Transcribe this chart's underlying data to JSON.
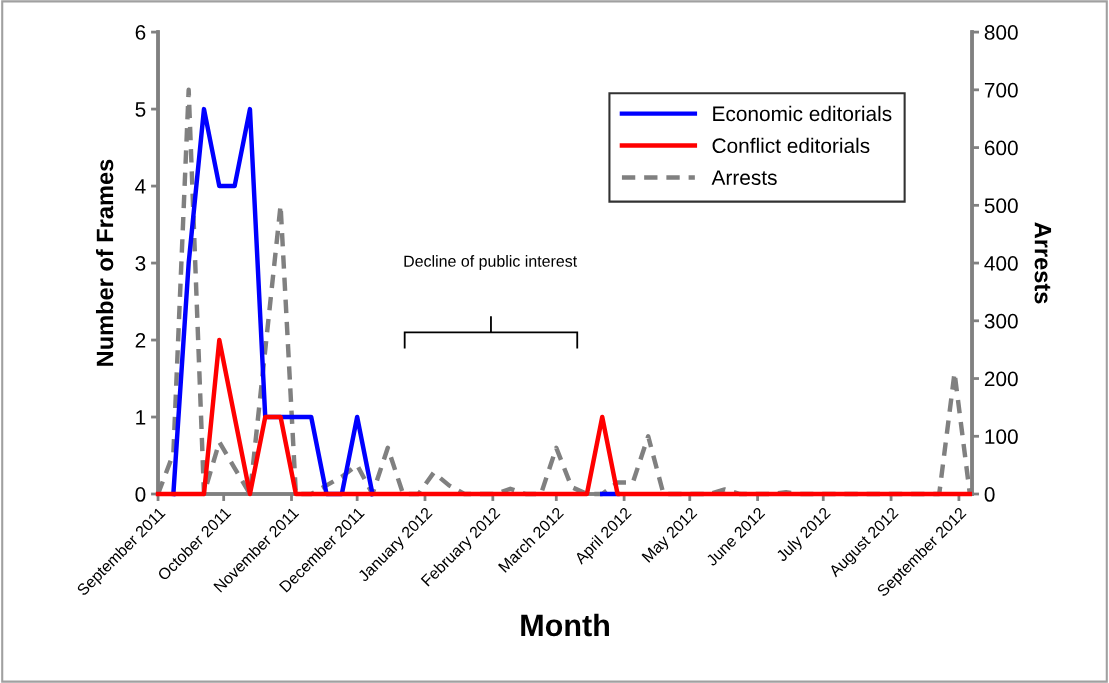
{
  "chart_data": {
    "type": "line",
    "xlabel": "Month",
    "ylabel": "Number of Frames",
    "y2label": "Arrests",
    "x": [
      "2011-09-01",
      "2011-09-08",
      "2011-09-15",
      "2011-09-22",
      "2011-09-29",
      "2011-10-06",
      "2011-10-13",
      "2011-10-20",
      "2011-10-27",
      "2011-11-03",
      "2011-11-10",
      "2011-11-17",
      "2011-11-24",
      "2011-12-01",
      "2011-12-08",
      "2011-12-15",
      "2011-12-22",
      "2011-12-29",
      "2012-01-05",
      "2012-01-12",
      "2012-01-19",
      "2012-01-26",
      "2012-02-02",
      "2012-02-09",
      "2012-02-16",
      "2012-02-23",
      "2012-03-01",
      "2012-03-08",
      "2012-03-15",
      "2012-03-22",
      "2012-03-29",
      "2012-04-05",
      "2012-04-12",
      "2012-04-19",
      "2012-04-26",
      "2012-05-03",
      "2012-05-10",
      "2012-05-17",
      "2012-05-24",
      "2012-05-31",
      "2012-06-07",
      "2012-06-14",
      "2012-06-21",
      "2012-06-28",
      "2012-07-05",
      "2012-07-12",
      "2012-07-19",
      "2012-07-26",
      "2012-08-02",
      "2012-08-09",
      "2012-08-16",
      "2012-08-23",
      "2012-08-30",
      "2012-09-06"
    ],
    "series": [
      {
        "name": "Economic editorials",
        "color": "#0000ff",
        "line_style": "solid",
        "values": [
          null,
          0,
          3,
          5,
          4,
          4,
          5,
          1,
          1,
          1,
          1,
          0,
          0,
          1,
          0,
          null,
          null,
          null,
          null,
          null,
          null,
          null,
          null,
          null,
          null,
          null,
          null,
          null,
          null,
          0,
          0,
          null,
          null,
          null,
          null,
          null,
          null,
          null,
          null,
          null,
          null,
          null,
          null,
          null,
          null,
          null,
          null,
          null,
          null,
          null,
          null,
          null,
          null,
          null
        ]
      },
      {
        "name": "Conflict editorials",
        "color": "#ff0000",
        "line_style": "solid",
        "values": [
          0,
          0,
          0,
          0,
          2,
          1,
          0,
          1,
          1,
          0,
          0,
          0,
          0,
          0,
          0,
          0,
          0,
          0,
          0,
          0,
          0,
          0,
          0,
          0,
          0,
          0,
          0,
          0,
          0,
          1,
          0,
          0,
          0,
          0,
          0,
          0,
          0,
          0,
          0,
          0,
          0,
          0,
          0,
          0,
          0,
          0,
          0,
          0,
          0,
          0,
          0,
          0,
          0,
          0
        ]
      },
      {
        "name": "Arrests",
        "color": "#808080",
        "line_style": "dashed",
        "axis": "y2",
        "values": [
          0,
          70,
          700,
          0,
          90,
          45,
          0,
          250,
          500,
          0,
          0,
          15,
          30,
          50,
          0,
          80,
          0,
          0,
          37,
          15,
          0,
          0,
          0,
          9,
          0,
          0,
          80,
          12,
          0,
          0,
          20,
          20,
          100,
          0,
          0,
          0,
          0,
          8,
          0,
          0,
          0,
          3,
          0,
          0,
          0,
          0,
          0,
          0,
          0,
          0,
          0,
          0,
          210,
          0
        ]
      }
    ],
    "xlim": [
      "2011-09-01",
      "2012-09-07"
    ],
    "xticks": [
      {
        "value": "2011-09-01",
        "label": "September 2011"
      },
      {
        "value": "2011-10-01",
        "label": "October 2011"
      },
      {
        "value": "2011-11-01",
        "label": "November 2011"
      },
      {
        "value": "2011-12-01",
        "label": "December 2011"
      },
      {
        "value": "2012-01-01",
        "label": "January 2012"
      },
      {
        "value": "2012-02-01",
        "label": "February 2012"
      },
      {
        "value": "2012-03-01",
        "label": "March 2012"
      },
      {
        "value": "2012-04-01",
        "label": "April 2012"
      },
      {
        "value": "2012-05-01",
        "label": "May 2012"
      },
      {
        "value": "2012-06-01",
        "label": "June 2012"
      },
      {
        "value": "2012-07-01",
        "label": "July 2012"
      },
      {
        "value": "2012-08-01",
        "label": "August 2012"
      },
      {
        "value": "2012-09-01",
        "label": "September 2012"
      }
    ],
    "ylim": [
      0,
      6
    ],
    "yticks": [
      0,
      1,
      2,
      3,
      4,
      5,
      6
    ],
    "y2lim": [
      0,
      800
    ],
    "y2ticks": [
      0,
      100,
      200,
      300,
      400,
      500,
      600,
      700,
      800
    ],
    "annotations": [
      "Decline of public interest"
    ],
    "legend": "top right",
    "grid": false,
    "marker": "none"
  }
}
